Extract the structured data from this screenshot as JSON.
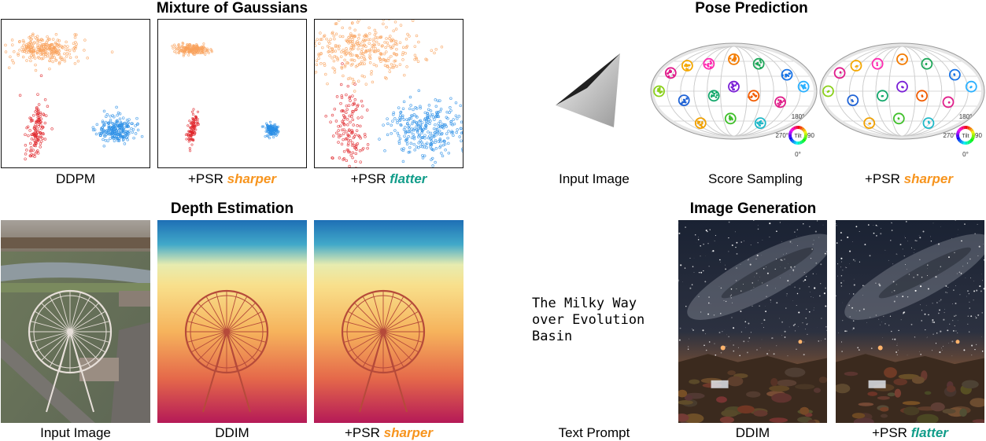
{
  "colors": {
    "sharper": "#f7941d",
    "flatter": "#129d8a",
    "orange": "#f9a15b",
    "red": "#e0262b",
    "blue": "#2a8fe6"
  },
  "gaussians": {
    "title": "Mixture of Gaussians",
    "captions": {
      "ddpm": "DDPM",
      "psr": "+PSR",
      "sharper": "sharper",
      "flatter": "flatter"
    }
  },
  "pose": {
    "title": "Pose Prediction",
    "captions": {
      "input": "Input Image",
      "score": "Score Sampling",
      "psr": "+PSR",
      "sharper": "sharper"
    },
    "wheel": {
      "top": "180°",
      "bottom": "0°",
      "left": "270°",
      "right": "90",
      "center": "Tilt"
    }
  },
  "depth": {
    "title": "Depth Estimation",
    "captions": {
      "input": "Input Image",
      "ddim": "DDIM",
      "psr": "+PSR",
      "sharper": "sharper"
    }
  },
  "imagegen": {
    "title": "Image Generation",
    "prompt": "The Milky Way\nover Evolution\nBasin",
    "captions": {
      "prompt": "Text Prompt",
      "ddim": "DDIM",
      "psr": "+PSR",
      "flatter": "flatter"
    }
  }
}
